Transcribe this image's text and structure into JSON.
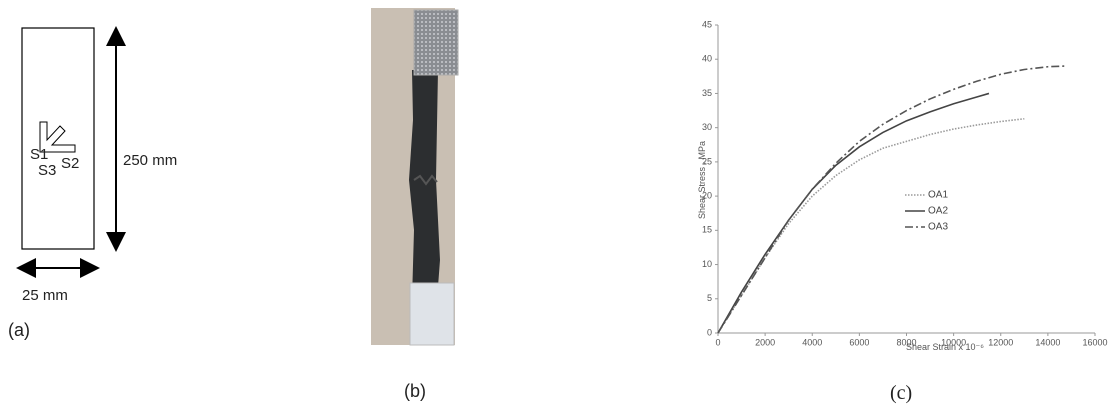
{
  "diagram": {
    "gauges": [
      "S1",
      "S2",
      "S3"
    ],
    "length": "250 mm",
    "width": "25 mm"
  },
  "captions": [
    "(a)",
    "(b)",
    "(c)"
  ],
  "chart_data": {
    "type": "line",
    "x_label": "Shear Strain x 10⁻⁶",
    "y_label": "Shear Stress , MPa",
    "xlim": [
      0,
      16000
    ],
    "xticks": [
      0,
      2000,
      4000,
      6000,
      8000,
      10000,
      12000,
      14000,
      16000
    ],
    "ylim": [
      0,
      45
    ],
    "yticks": [
      0,
      5,
      10,
      15,
      20,
      25,
      30,
      35,
      40,
      45
    ],
    "series": [
      {
        "name": "OA1",
        "color": "#9a9a9a",
        "dash": "1.5,1.5",
        "x": [
          0,
          1000,
          2000,
          3000,
          4000,
          5000,
          6000,
          7000,
          8000,
          9000,
          10000,
          11000,
          12000,
          13000
        ],
        "values": [
          0,
          5.5,
          11,
          16,
          20,
          23,
          25.3,
          27,
          28,
          29,
          29.8,
          30.4,
          30.9,
          31.3
        ]
      },
      {
        "name": "OA2",
        "color": "#444444",
        "dash": "none",
        "x": [
          0,
          1000,
          2000,
          3000,
          4000,
          5000,
          6000,
          7000,
          8000,
          9000,
          10000,
          11000,
          11500
        ],
        "values": [
          0,
          6,
          11.5,
          16.5,
          21,
          24.5,
          27.2,
          29.3,
          31,
          32.3,
          33.5,
          34.5,
          35
        ]
      },
      {
        "name": "OA3",
        "color": "#555555",
        "dash": "8,3,2,3",
        "x": [
          0,
          1000,
          2000,
          3000,
          4000,
          5000,
          6000,
          7000,
          8000,
          9000,
          10000,
          11000,
          12000,
          13000,
          14000,
          14700
        ],
        "values": [
          0,
          5.5,
          11,
          16.5,
          21,
          24.8,
          28,
          30.5,
          32.5,
          34.2,
          35.6,
          36.8,
          37.8,
          38.5,
          38.9,
          39
        ]
      }
    ]
  }
}
